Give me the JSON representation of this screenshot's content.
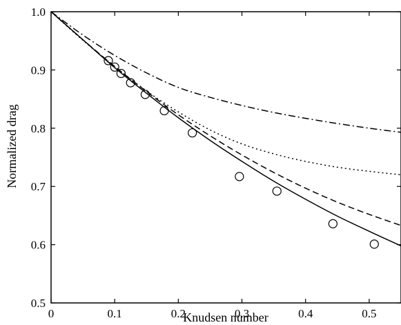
{
  "chart_data": {
    "type": "line",
    "title": "",
    "xlabel": "Knudsen number",
    "ylabel": "Normalized drag",
    "xlim": [
      0,
      0.55
    ],
    "ylim": [
      0.5,
      1.0
    ],
    "grid": false,
    "legend": "none",
    "xticks": [
      {
        "value": 0,
        "label": "0"
      },
      {
        "value": 0.1,
        "label": "0.1"
      },
      {
        "value": 0.2,
        "label": "0.2"
      },
      {
        "value": 0.3,
        "label": "0.3"
      },
      {
        "value": 0.4,
        "label": "0.4"
      },
      {
        "value": 0.5,
        "label": "0.5"
      }
    ],
    "yticks": [
      {
        "value": 0.5,
        "label": "0.5"
      },
      {
        "value": 0.6,
        "label": "0.6"
      },
      {
        "value": 0.7,
        "label": "0.7"
      },
      {
        "value": 0.8,
        "label": "0.8"
      },
      {
        "value": 0.9,
        "label": "0.9"
      },
      {
        "value": 1.0,
        "label": "1.0"
      }
    ],
    "series": [
      {
        "style": "solid",
        "x": [
          0,
          0.05,
          0.1,
          0.15,
          0.2,
          0.25,
          0.3,
          0.35,
          0.4,
          0.45,
          0.5,
          0.55
        ],
        "y": [
          1.0,
          0.952,
          0.904,
          0.86,
          0.818,
          0.779,
          0.743,
          0.709,
          0.678,
          0.649,
          0.623,
          0.598
        ]
      },
      {
        "style": "dashed",
        "x": [
          0,
          0.05,
          0.1,
          0.15,
          0.2,
          0.25,
          0.3,
          0.35,
          0.4,
          0.45,
          0.5,
          0.55
        ],
        "y": [
          1.0,
          0.952,
          0.906,
          0.863,
          0.823,
          0.787,
          0.754,
          0.724,
          0.697,
          0.673,
          0.652,
          0.633
        ]
      },
      {
        "style": "dotted",
        "x": [
          0,
          0.05,
          0.1,
          0.15,
          0.2,
          0.25,
          0.3,
          0.35,
          0.4,
          0.45,
          0.5,
          0.55
        ],
        "y": [
          1.0,
          0.951,
          0.906,
          0.864,
          0.828,
          0.797,
          0.773,
          0.756,
          0.743,
          0.733,
          0.726,
          0.72
        ]
      },
      {
        "style": "dash-dot",
        "x": [
          0,
          0.05,
          0.1,
          0.15,
          0.2,
          0.25,
          0.3,
          0.35,
          0.4,
          0.45,
          0.5,
          0.55
        ],
        "y": [
          1.0,
          0.96,
          0.925,
          0.895,
          0.87,
          0.853,
          0.839,
          0.827,
          0.817,
          0.808,
          0.8,
          0.793
        ]
      },
      {
        "style": "circles",
        "x": [
          0.09,
          0.1,
          0.11,
          0.125,
          0.148,
          0.178,
          0.222,
          0.296,
          0.355,
          0.443,
          0.508
        ],
        "y": [
          0.916,
          0.905,
          0.894,
          0.878,
          0.858,
          0.83,
          0.792,
          0.717,
          0.692,
          0.636,
          0.601
        ]
      }
    ]
  }
}
